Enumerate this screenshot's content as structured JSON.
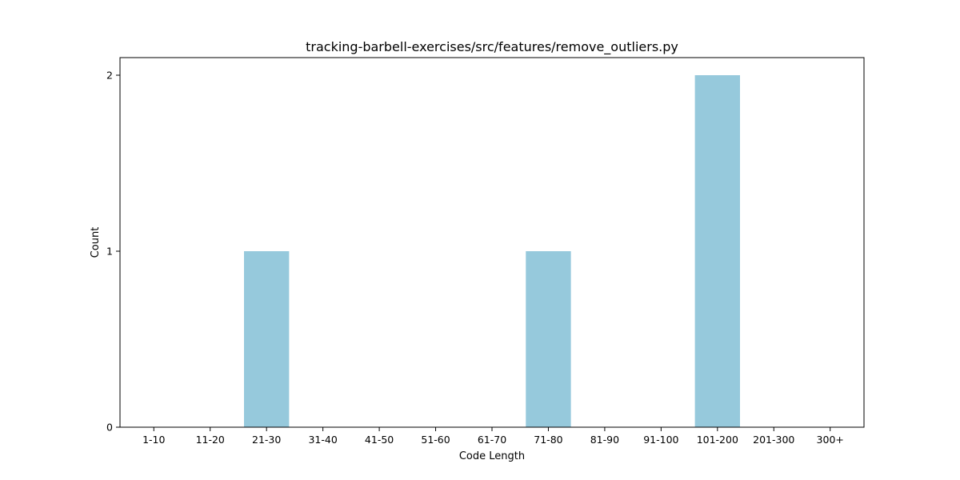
{
  "chart_data": {
    "type": "bar",
    "title": "tracking-barbell-exercises/src/features/remove_outliers.py",
    "xlabel": "Code Length",
    "ylabel": "Count",
    "categories": [
      "1-10",
      "11-20",
      "21-30",
      "31-40",
      "41-50",
      "51-60",
      "61-70",
      "71-80",
      "81-90",
      "91-100",
      "101-200",
      "201-300",
      "300+"
    ],
    "values": [
      0,
      0,
      1,
      0,
      0,
      0,
      0,
      1,
      0,
      0,
      2,
      0,
      0
    ],
    "ylim": [
      0,
      2.1
    ],
    "yticks": [
      0,
      1,
      2
    ],
    "grid": false,
    "bar_color": "#96c9dc"
  }
}
